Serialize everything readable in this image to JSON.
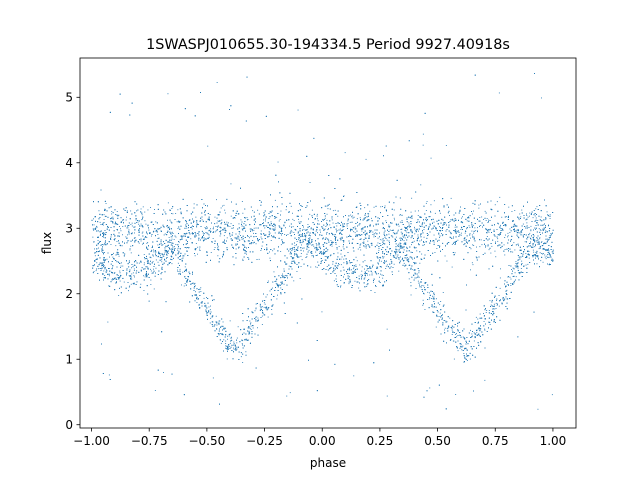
{
  "chart_data": {
    "type": "scatter",
    "title": "1SWASPJ010655.30-194334.5 Period 9927.40918s",
    "xlabel": "phase",
    "ylabel": "flux",
    "xlim": [
      -1.05,
      1.1
    ],
    "ylim": [
      -0.05,
      5.6
    ],
    "xticks": [
      -1.0,
      -0.75,
      -0.5,
      -0.25,
      0.0,
      0.25,
      0.5,
      0.75,
      1.0
    ],
    "xtick_labels": [
      "−1.00",
      "−0.75",
      "−0.50",
      "−0.25",
      "0.00",
      "0.25",
      "0.50",
      "0.75",
      "1.00"
    ],
    "yticks": [
      0,
      1,
      2,
      3,
      4,
      5
    ],
    "ytick_labels": [
      "0",
      "1",
      "2",
      "3",
      "4",
      "5"
    ],
    "grid": false,
    "marker_color": "#1f77b4",
    "marker": "tiny point",
    "x_range_of_points": [
      -1.0,
      1.0
    ],
    "light_curve": {
      "baseline_flux": 2.95,
      "baseline_spread": 0.22,
      "primary_minima_phase": [
        -0.38,
        0.62
      ],
      "primary_minimum_flux": 1.15,
      "minimum_half_width_phase": 0.28,
      "secondary_branch_flux": 2.35,
      "secondary_branch_phases": [
        [
          -1.0,
          -0.7
        ],
        [
          0.0,
          0.3
        ]
      ],
      "secondary_branch_center_flux": 2.3,
      "outlier_range": [
        0.2,
        5.4
      ]
    },
    "series": [
      {
        "x": [
          -1.0,
          -0.9,
          -0.8,
          -0.7,
          -0.6,
          -0.5,
          -0.45,
          -0.4,
          -0.38,
          -0.35,
          -0.3,
          -0.25,
          -0.2,
          -0.1,
          0.0,
          0.1,
          0.2,
          0.3,
          0.4,
          0.5,
          0.55,
          0.6,
          0.62,
          0.65,
          0.7,
          0.75,
          0.8,
          0.9,
          1.0
        ],
        "y_lower_branch": [
          2.35,
          2.3,
          2.35,
          2.6,
          2.05,
          1.5,
          1.25,
          1.15,
          1.15,
          1.2,
          1.5,
          1.95,
          2.45,
          2.7,
          2.45,
          2.3,
          2.35,
          2.6,
          2.05,
          1.5,
          1.25,
          1.15,
          1.15,
          1.2,
          1.5,
          1.95,
          2.45,
          2.7,
          2.45
        ],
        "y_upper_branch": [
          2.95,
          2.95,
          2.95,
          2.9,
          2.95,
          2.95,
          2.95,
          2.95,
          2.95,
          2.95,
          2.95,
          2.95,
          2.95,
          2.95,
          2.95,
          2.95,
          2.95,
          2.9,
          2.95,
          2.95,
          2.95,
          2.95,
          2.95,
          2.95,
          2.95,
          2.95,
          2.95,
          2.95,
          2.95
        ]
      }
    ]
  }
}
